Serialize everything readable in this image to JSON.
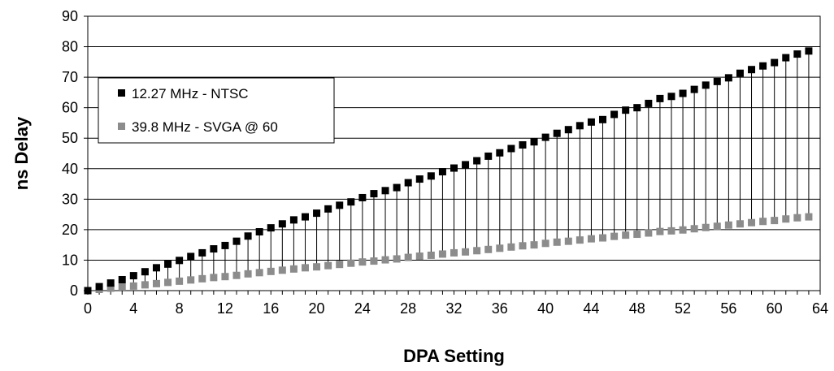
{
  "chart_data": {
    "type": "scatter",
    "title": "",
    "xlabel": "DPA Setting",
    "ylabel": "ns Delay",
    "xlim": [
      0,
      64
    ],
    "ylim": [
      0,
      90
    ],
    "xticks": [
      0,
      4,
      8,
      12,
      16,
      20,
      24,
      28,
      32,
      36,
      40,
      44,
      48,
      52,
      56,
      60,
      64
    ],
    "yticks": [
      0,
      10,
      20,
      30,
      40,
      50,
      60,
      70,
      80,
      90
    ],
    "grid": "horizontal",
    "legend_position": "left",
    "drop_lines": true,
    "series": [
      {
        "name": "12.27 MHz - NTSC",
        "color": "#000000",
        "marker": "square",
        "x": [
          0,
          1,
          2,
          3,
          4,
          5,
          6,
          7,
          8,
          9,
          10,
          11,
          12,
          13,
          14,
          15,
          16,
          17,
          18,
          19,
          20,
          21,
          22,
          23,
          24,
          25,
          26,
          27,
          28,
          29,
          30,
          31,
          32,
          33,
          34,
          35,
          36,
          37,
          38,
          39,
          40,
          41,
          42,
          43,
          44,
          45,
          46,
          47,
          48,
          49,
          50,
          51,
          52,
          53,
          54,
          55,
          56,
          57,
          58,
          59,
          60,
          61,
          62,
          63
        ],
        "y": [
          0,
          1.3,
          2.5,
          3.6,
          4.9,
          6.2,
          7.5,
          8.7,
          9.9,
          11.2,
          12.4,
          13.7,
          14.8,
          16.2,
          17.9,
          19.3,
          20.6,
          21.9,
          23.2,
          24.2,
          25.4,
          26.8,
          28.0,
          29.1,
          30.5,
          31.8,
          32.8,
          33.8,
          35.4,
          36.6,
          37.6,
          39.0,
          40.2,
          41.3,
          42.6,
          44.1,
          45.2,
          46.6,
          47.8,
          48.8,
          50.3,
          51.6,
          52.8,
          54.1,
          55.3,
          56.1,
          57.8,
          59.2,
          60.0,
          61.4,
          63.0,
          63.7,
          64.7,
          66.0,
          67.4,
          68.6,
          69.8,
          71.3,
          72.5,
          73.7,
          74.8,
          76.4,
          77.6,
          78.6
        ]
      },
      {
        "name": "39.8 MHz - SVGA @ 60",
        "color": "#8c8c8c",
        "marker": "square",
        "x": [
          0,
          1,
          2,
          3,
          4,
          5,
          6,
          7,
          8,
          9,
          10,
          11,
          12,
          13,
          14,
          15,
          16,
          17,
          18,
          19,
          20,
          21,
          22,
          23,
          24,
          25,
          26,
          27,
          28,
          29,
          30,
          31,
          32,
          33,
          34,
          35,
          36,
          37,
          38,
          39,
          40,
          41,
          42,
          43,
          44,
          45,
          46,
          47,
          48,
          49,
          50,
          51,
          52,
          53,
          54,
          55,
          56,
          57,
          58,
          59,
          60,
          61,
          62,
          63
        ],
        "y": [
          0,
          0.4,
          0.8,
          1.2,
          1.5,
          1.9,
          2.3,
          2.7,
          3.1,
          3.5,
          3.9,
          4.3,
          4.6,
          5.0,
          5.5,
          5.9,
          6.3,
          6.7,
          7.1,
          7.5,
          7.8,
          8.2,
          8.6,
          9.0,
          9.4,
          9.7,
          10.1,
          10.4,
          10.9,
          11.3,
          11.6,
          12.0,
          12.4,
          12.7,
          13.1,
          13.5,
          13.9,
          14.3,
          14.7,
          15.0,
          15.5,
          15.9,
          16.2,
          16.6,
          17.0,
          17.3,
          17.8,
          18.2,
          18.5,
          18.9,
          19.4,
          19.6,
          19.9,
          20.3,
          20.7,
          21.1,
          21.5,
          21.9,
          22.3,
          22.7,
          23.0,
          23.5,
          23.9,
          24.2
        ]
      }
    ]
  }
}
